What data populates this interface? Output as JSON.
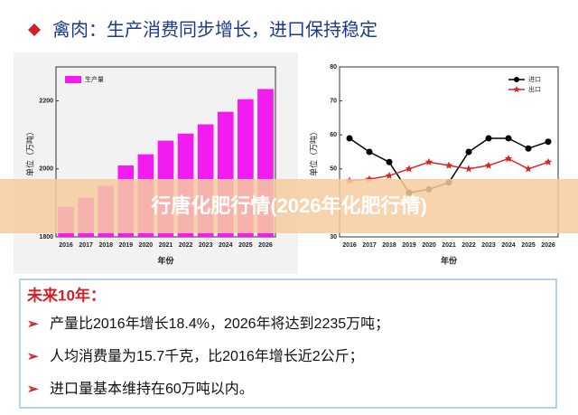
{
  "header": {
    "title": "禽肉：生产消费同步增长，进口保持稳定"
  },
  "chart_data": [
    {
      "type": "bar",
      "categories": [
        "2016",
        "2017",
        "2018",
        "2019",
        "2020",
        "2021",
        "2022",
        "2023",
        "2024",
        "2025",
        "2026"
      ],
      "series": [
        {
          "name": "生产量",
          "color": "#f21cf0",
          "values": [
            1888,
            1915,
            1950,
            2010,
            2043,
            2083,
            2104,
            2131,
            2168,
            2205,
            2235
          ]
        }
      ],
      "ylim": [
        1800,
        2300
      ],
      "yticks": [
        1800,
        2000,
        2200
      ],
      "ylabel": "单位（万吨）",
      "xlabel": "年份",
      "legend": "upper left"
    },
    {
      "type": "line",
      "categories": [
        "2016",
        "2017",
        "2018",
        "2019",
        "2020",
        "2021",
        "2022",
        "2023",
        "2024",
        "2025",
        "2026"
      ],
      "series": [
        {
          "name": "进口",
          "color": "#000000",
          "marker": "circle",
          "values": [
            59,
            55,
            52,
            43,
            44,
            46,
            55,
            59,
            59,
            56,
            58
          ]
        },
        {
          "name": "出口",
          "color": "#d62728",
          "marker": "star",
          "values": [
            46.5,
            47,
            48,
            50,
            52,
            51,
            50,
            51,
            53,
            50,
            52
          ]
        }
      ],
      "ylim": [
        30,
        80
      ],
      "yticks": [
        30,
        40,
        50,
        60,
        70,
        80
      ],
      "ylabel": "单位（万吨）",
      "xlabel": "年份",
      "legend": "upper right"
    }
  ],
  "banner": "行唐化肥行情(2026年化肥行情)",
  "summary": {
    "heading": "未来10年：",
    "bullets": [
      "产量比2016年增长18.4%，2026年将达到2235万吨；",
      "人均消费量为15.7千克，比2016年增长近2公斤；",
      "进口量基本维持在60万吨以内。"
    ]
  }
}
